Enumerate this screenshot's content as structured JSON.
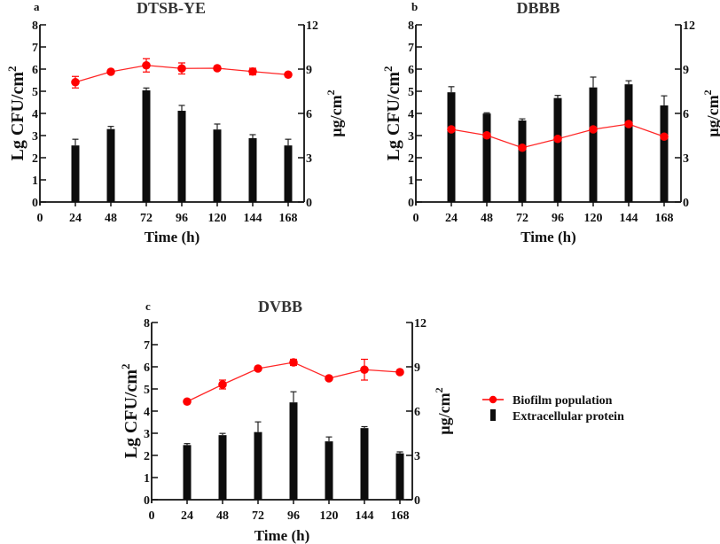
{
  "figure": {
    "legend": {
      "placement": "right of panel c",
      "items": [
        {
          "label": "Biofilm population",
          "type": "line-marker",
          "color": "#ff0000"
        },
        {
          "label": "Extracellular protein",
          "type": "bar",
          "color": "#0d0d0d"
        }
      ]
    }
  },
  "chart_data": [
    {
      "panel_label": "a",
      "type": "bar+line",
      "title": "DTSB-YE",
      "xlabel": "Time (h)",
      "ylabel_left": "Lg CFU/cm",
      "ylabel_left_sup": "2",
      "ylabel_right": "μg/cm",
      "ylabel_right_sup": "2",
      "x_ticks": [
        "0",
        "24",
        "48",
        "72",
        "96",
        "120",
        "144",
        "168"
      ],
      "x_range": [
        0,
        180
      ],
      "y_left_ticks": [
        "0",
        "1",
        "2",
        "3",
        "4",
        "5",
        "6",
        "7",
        "8"
      ],
      "y_left_range": [
        0,
        8
      ],
      "y_right_ticks": [
        "0",
        "3",
        "6",
        "9",
        "12"
      ],
      "y_right_range": [
        0,
        12
      ],
      "grid": false,
      "categories": [
        24,
        48,
        72,
        96,
        120,
        144,
        168
      ],
      "series": [
        {
          "name": "Extracellular protein",
          "axis": "right",
          "kind": "bar",
          "color": "#0d0d0d",
          "values": [
            3.83,
            4.94,
            7.56,
            6.18,
            4.91,
            4.32,
            3.83
          ],
          "errors": [
            0.42,
            0.18,
            0.16,
            0.36,
            0.37,
            0.24,
            0.42
          ]
        },
        {
          "name": "Biofilm population",
          "axis": "left",
          "kind": "line",
          "color": "#ff0000",
          "values": [
            5.41,
            5.88,
            6.17,
            6.03,
            6.04,
            5.89,
            5.75
          ],
          "errors": [
            0.26,
            0.04,
            0.3,
            0.25,
            0.05,
            0.15,
            0.03
          ]
        }
      ]
    },
    {
      "panel_label": "b",
      "type": "bar+line",
      "title": "DBBB",
      "xlabel": "Time (h)",
      "ylabel_left": "Lg CFU/cm",
      "ylabel_left_sup": "2",
      "ylabel_right": "μg/cm",
      "ylabel_right_sup": "2",
      "x_ticks": [
        "0",
        "24",
        "48",
        "72",
        "96",
        "120",
        "144",
        "168"
      ],
      "x_range": [
        0,
        180
      ],
      "y_left_ticks": [
        "0",
        "1",
        "2",
        "3",
        "4",
        "5",
        "6",
        "7",
        "8"
      ],
      "y_left_range": [
        0,
        8
      ],
      "y_right_ticks": [
        "0",
        "3",
        "6",
        "9",
        "12"
      ],
      "y_right_range": [
        0,
        12
      ],
      "grid": false,
      "categories": [
        24,
        48,
        72,
        96,
        120,
        144,
        168
      ],
      "series": [
        {
          "name": "Extracellular protein",
          "axis": "right",
          "kind": "bar",
          "color": "#0d0d0d",
          "values": [
            7.43,
            5.99,
            5.52,
            7.04,
            7.76,
            7.97,
            6.54
          ],
          "errors": [
            0.38,
            0.05,
            0.11,
            0.18,
            0.7,
            0.24,
            0.65
          ]
        },
        {
          "name": "Biofilm population",
          "axis": "left",
          "kind": "line",
          "color": "#ff0000",
          "values": [
            3.28,
            3.01,
            2.45,
            2.85,
            3.28,
            3.52,
            2.95
          ],
          "errors": [
            0,
            0,
            0,
            0,
            0,
            0,
            0
          ]
        }
      ]
    },
    {
      "panel_label": "c",
      "type": "bar+line",
      "title": "DVBB",
      "xlabel": "Time (h)",
      "ylabel_left": "Lg CFU/cm",
      "ylabel_left_sup": "2",
      "ylabel_right": "μg/cm",
      "ylabel_right_sup": "2",
      "x_ticks": [
        "0",
        "24",
        "48",
        "72",
        "96",
        "120",
        "144",
        "168"
      ],
      "x_range": [
        0,
        180
      ],
      "y_left_ticks": [
        "0",
        "1",
        "2",
        "3",
        "4",
        "5",
        "6",
        "7",
        "8"
      ],
      "y_left_range": [
        0,
        8
      ],
      "y_right_ticks": [
        "0",
        "3",
        "6",
        "9",
        "12"
      ],
      "y_right_range": [
        0,
        12
      ],
      "grid": false,
      "categories": [
        24,
        48,
        72,
        96,
        120,
        144,
        168
      ],
      "series": [
        {
          "name": "Extracellular protein",
          "axis": "right",
          "kind": "bar",
          "color": "#0d0d0d",
          "values": [
            3.7,
            4.37,
            4.58,
            6.59,
            3.95,
            4.85,
            3.14
          ],
          "errors": [
            0.1,
            0.12,
            0.69,
            0.72,
            0.3,
            0.1,
            0.1
          ]
        },
        {
          "name": "Biofilm population",
          "axis": "left",
          "kind": "line",
          "color": "#ff0000",
          "values": [
            4.43,
            5.2,
            5.92,
            6.2,
            5.48,
            5.87,
            5.76
          ],
          "errors": [
            0.03,
            0.2,
            0.04,
            0.14,
            0.03,
            0.47,
            0.03
          ]
        }
      ]
    }
  ]
}
